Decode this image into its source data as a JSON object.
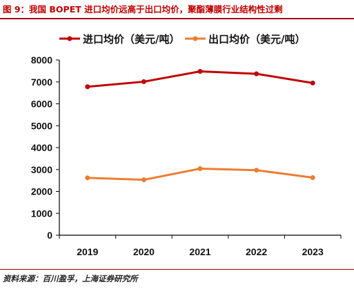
{
  "figure": {
    "title": "图 9：我国 BOPET 进口均价远高于出口均价，聚酯薄膜行业结构性过剩",
    "source": "资料来源：百川盈孚，上海证券研究所"
  },
  "chart_data": {
    "type": "line",
    "x": [
      "2019",
      "2020",
      "2021",
      "2022",
      "2023"
    ],
    "ylim": [
      0,
      8000
    ],
    "yticks": [
      0,
      1000,
      2000,
      3000,
      4000,
      5000,
      6000,
      7000,
      8000
    ],
    "grid": false,
    "legend_position": "top",
    "series": [
      {
        "name": "进口均价（美元/吨）",
        "color": "#c00000",
        "values": [
          6780,
          7010,
          7480,
          7370,
          6950
        ]
      },
      {
        "name": "出口均价（美元/吨）",
        "color": "#ed7d31",
        "values": [
          2620,
          2530,
          3040,
          2970,
          2630
        ]
      }
    ]
  }
}
